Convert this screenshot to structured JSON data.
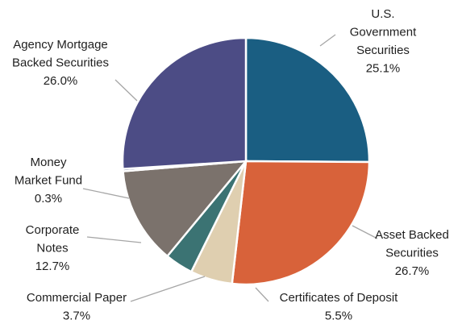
{
  "chart_data": {
    "type": "pie",
    "start_angle_deg": 0,
    "direction": "clockwise",
    "slices": [
      {
        "name": "U.S. Government Securities",
        "value": 25.1,
        "label_lines": [
          "U.S.",
          "Government",
          "Securities"
        ],
        "pct": "25.1%",
        "color": "#1a5e82"
      },
      {
        "name": "Asset Backed Securities",
        "value": 26.7,
        "label_lines": [
          "Asset Backed",
          "Securities"
        ],
        "pct": "26.7%",
        "color": "#d8623a"
      },
      {
        "name": "Certificates of Deposit",
        "value": 5.5,
        "label_lines": [
          "Certificates of Deposit"
        ],
        "pct": "5.5%",
        "color": "#dfcfb0"
      },
      {
        "name": "Commercial Paper",
        "value": 3.7,
        "label_lines": [
          "Commercial Paper"
        ],
        "pct": "3.7%",
        "color": "#3b7373"
      },
      {
        "name": "Corporate Notes",
        "value": 12.7,
        "label_lines": [
          "Corporate",
          "Notes"
        ],
        "pct": "12.7%",
        "color": "#7b726c"
      },
      {
        "name": "Money Market Fund",
        "value": 0.3,
        "label_lines": [
          "Money",
          "Market Fund"
        ],
        "pct": "0.3%",
        "color": "#3a4a78"
      },
      {
        "name": "Agency Mortgage Backed Securities",
        "value": 26.0,
        "label_lines": [
          "Agency Mortgage",
          "Backed Securities"
        ],
        "pct": "26.0%",
        "color": "#4c4c85"
      }
    ]
  }
}
